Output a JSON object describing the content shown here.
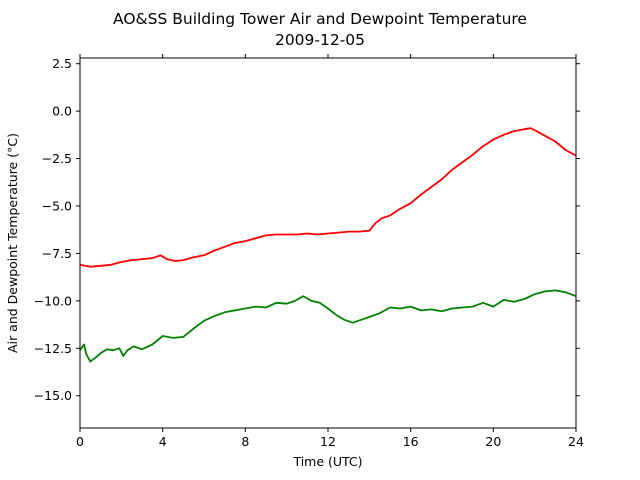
{
  "chart_data": {
    "type": "line",
    "title": "AO&SS Building Tower Air and Dewpoint Temperature",
    "subtitle": "2009-12-05",
    "xlabel": "Time (UTC)",
    "ylabel": "Air and Dewpoint Temperature (°C)",
    "xlim": [
      0,
      24
    ],
    "ylim": [
      -16.7,
      2.8
    ],
    "xticks": [
      0,
      4,
      8,
      12,
      16,
      20,
      24
    ],
    "xtick_labels": [
      "0",
      "4",
      "8",
      "12",
      "16",
      "20",
      "24"
    ],
    "yticks": [
      2.5,
      0.0,
      -2.5,
      -5.0,
      -7.5,
      -10.0,
      -12.5,
      -15.0
    ],
    "ytick_labels": [
      "2.5",
      "0.0",
      "−2.5",
      "−5.0",
      "−7.5",
      "−10.0",
      "−12.5",
      "−15.0"
    ],
    "grid": false,
    "legend": "none",
    "series": [
      {
        "color": "#ff0000",
        "x": [
          0,
          0.5,
          1,
          1.5,
          2,
          2.5,
          3,
          3.5,
          3.9,
          4.2,
          4.6,
          5,
          5.5,
          6,
          6.5,
          7,
          7.5,
          8,
          8.5,
          9,
          9.5,
          10,
          10.5,
          11,
          11.5,
          12,
          12.5,
          13,
          13.5,
          14,
          14.3,
          14.6,
          15,
          15.5,
          16,
          16.5,
          17,
          17.5,
          18,
          18.5,
          19,
          19.5,
          20,
          20.5,
          21,
          21.5,
          21.8,
          22,
          22.5,
          23,
          23.5,
          24
        ],
        "y": [
          -8.1,
          -8.2,
          -8.15,
          -8.1,
          -7.95,
          -7.85,
          -7.8,
          -7.75,
          -7.6,
          -7.8,
          -7.9,
          -7.85,
          -7.7,
          -7.6,
          -7.35,
          -7.15,
          -6.95,
          -6.85,
          -6.7,
          -6.55,
          -6.5,
          -6.5,
          -6.5,
          -6.45,
          -6.5,
          -6.45,
          -6.4,
          -6.35,
          -6.35,
          -6.3,
          -5.9,
          -5.65,
          -5.5,
          -5.15,
          -4.85,
          -4.4,
          -4.0,
          -3.6,
          -3.1,
          -2.7,
          -2.3,
          -1.85,
          -1.5,
          -1.25,
          -1.05,
          -0.95,
          -0.9,
          -1.0,
          -1.3,
          -1.6,
          -2.05,
          -2.35
        ]
      },
      {
        "color": "#008000",
        "x": [
          0,
          0.2,
          0.3,
          0.5,
          0.8,
          1,
          1.3,
          1.6,
          1.9,
          2.1,
          2.3,
          2.6,
          3,
          3.5,
          4,
          4.5,
          5,
          5.5,
          6,
          6.5,
          7,
          7.5,
          8,
          8.5,
          9,
          9.5,
          10,
          10.4,
          10.8,
          11.2,
          11.6,
          12,
          12.4,
          12.8,
          13.2,
          13.6,
          14,
          14.5,
          15,
          15.5,
          16,
          16.5,
          17,
          17.5,
          18,
          18.5,
          19,
          19.5,
          20,
          20.5,
          21,
          21.5,
          22,
          22.5,
          23,
          23.5,
          24
        ],
        "y": [
          -12.6,
          -12.3,
          -12.8,
          -13.2,
          -12.95,
          -12.75,
          -12.55,
          -12.6,
          -12.5,
          -12.9,
          -12.6,
          -12.4,
          -12.55,
          -12.3,
          -11.85,
          -11.95,
          -11.9,
          -11.45,
          -11.05,
          -10.8,
          -10.6,
          -10.5,
          -10.4,
          -10.3,
          -10.35,
          -10.1,
          -10.15,
          -10.0,
          -9.75,
          -10.0,
          -10.1,
          -10.4,
          -10.75,
          -11.0,
          -11.15,
          -11.0,
          -10.85,
          -10.65,
          -10.35,
          -10.4,
          -10.3,
          -10.5,
          -10.45,
          -10.55,
          -10.4,
          -10.35,
          -10.3,
          -10.1,
          -10.3,
          -9.95,
          -10.05,
          -9.9,
          -9.65,
          -9.5,
          -9.45,
          -9.55,
          -9.75
        ]
      }
    ]
  }
}
